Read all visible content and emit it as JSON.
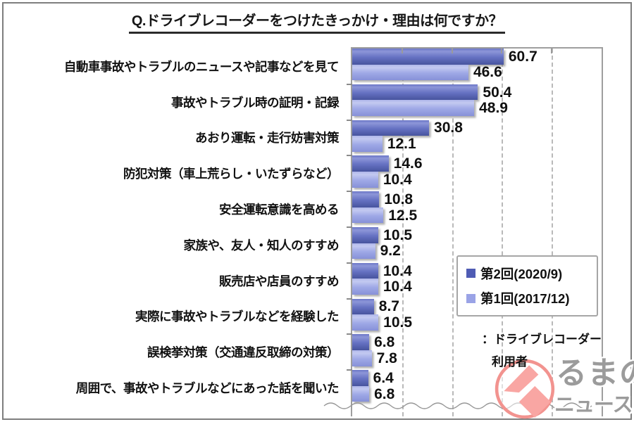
{
  "title": "Q.ドライブレコーダーをつけたきっかけ・理由は何ですか？",
  "chart_data": {
    "type": "bar",
    "orientation": "horizontal",
    "title": "Q.ドライブレコーダーをつけたきっかけ・理由は何ですか？",
    "categories": [
      "自動車事故やトラブルのニュースや記事などを見て",
      "事故やトラブル時の証明・記録",
      "あおり運転・走行妨害対策",
      "防犯対策（車上荒らし・いたずらなど）",
      "安全運転意識を高める",
      "家族や、友人・知人のすすめ",
      "販売店や店員のすすめ",
      "実際に事故やトラブルなどを経験した",
      "誤検挙対策（交通違反取締の対策）",
      "周囲で、事故やトラブルなどにあった話を聞いた"
    ],
    "series": [
      {
        "name": "第2回(2020/9)",
        "color": "#4f5cb4",
        "values": [
          60.7,
          50.4,
          30.8,
          14.6,
          10.8,
          10.5,
          10.4,
          8.7,
          6.8,
          6.4
        ]
      },
      {
        "name": "第1回(2017/12)",
        "color": "#9aa3e6",
        "values": [
          46.6,
          48.9,
          12.1,
          10.4,
          12.5,
          9.2,
          10.4,
          10.5,
          7.8,
          6.8
        ]
      }
    ],
    "xlim": [
      0,
      100
    ],
    "gridlines": [
      20,
      40,
      60,
      80
    ],
    "grid_style": "dashed-vertical",
    "legend_position": "inside-right",
    "axis_break_wave_at_bottom": true
  },
  "legend": {
    "note_line1": "：ドライブレコーダー",
    "note_line2": "利用者"
  },
  "logo": {
    "mark": "kuruma-no-news-circle-mark",
    "text_line1": "るまの",
    "text_line2": "ニュース",
    "accent_color": "#f2938f",
    "text_color": "#9b9b9b"
  }
}
